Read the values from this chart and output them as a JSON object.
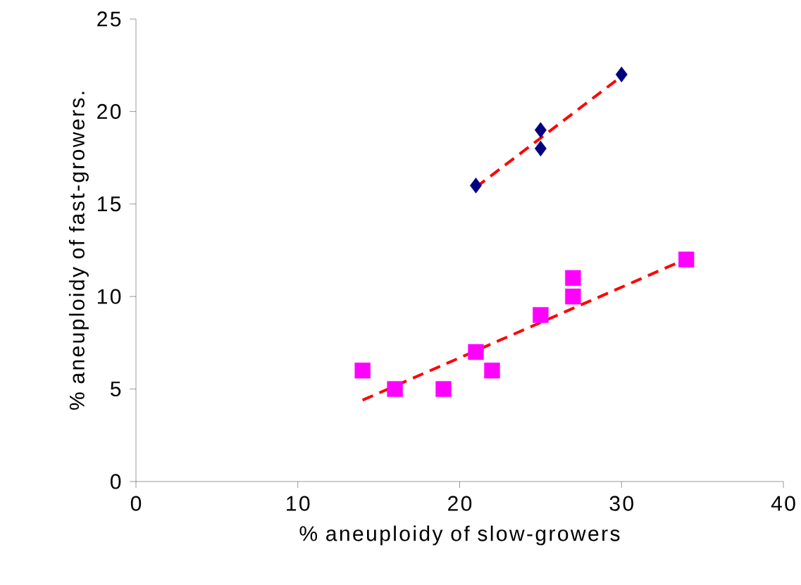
{
  "chart_data": {
    "type": "scatter",
    "xlabel": "% aneuploidy  of slow-growers",
    "ylabel": "% aneuploidy of fast-growers.",
    "xlim": [
      0,
      40
    ],
    "ylim": [
      0,
      25
    ],
    "xticks": [
      0,
      10,
      20,
      30,
      40
    ],
    "yticks": [
      0,
      5,
      10,
      15,
      20,
      25
    ],
    "series": [
      {
        "color": "#000080",
        "marker": "diamond",
        "x": [
          21,
          25,
          25,
          30
        ],
        "values": [
          16,
          19,
          18,
          22
        ]
      },
      {
        "color": "#ff00ff",
        "marker": "square",
        "x": [
          14,
          16,
          19,
          21,
          22,
          25,
          27,
          27,
          34
        ],
        "values": [
          6,
          5,
          5,
          7,
          6,
          9,
          11,
          10,
          12
        ]
      },
      {
        "type": "line",
        "color": "#ff0000",
        "line_style": "dashed",
        "marker": "none",
        "x": [
          21,
          30
        ],
        "values": [
          15.9,
          21.9
        ]
      },
      {
        "type": "line",
        "color": "#ff0000",
        "line_style": "dashed",
        "marker": "none",
        "x": [
          14,
          33.4
        ],
        "values": [
          4.4,
          11.8
        ]
      }
    ]
  }
}
